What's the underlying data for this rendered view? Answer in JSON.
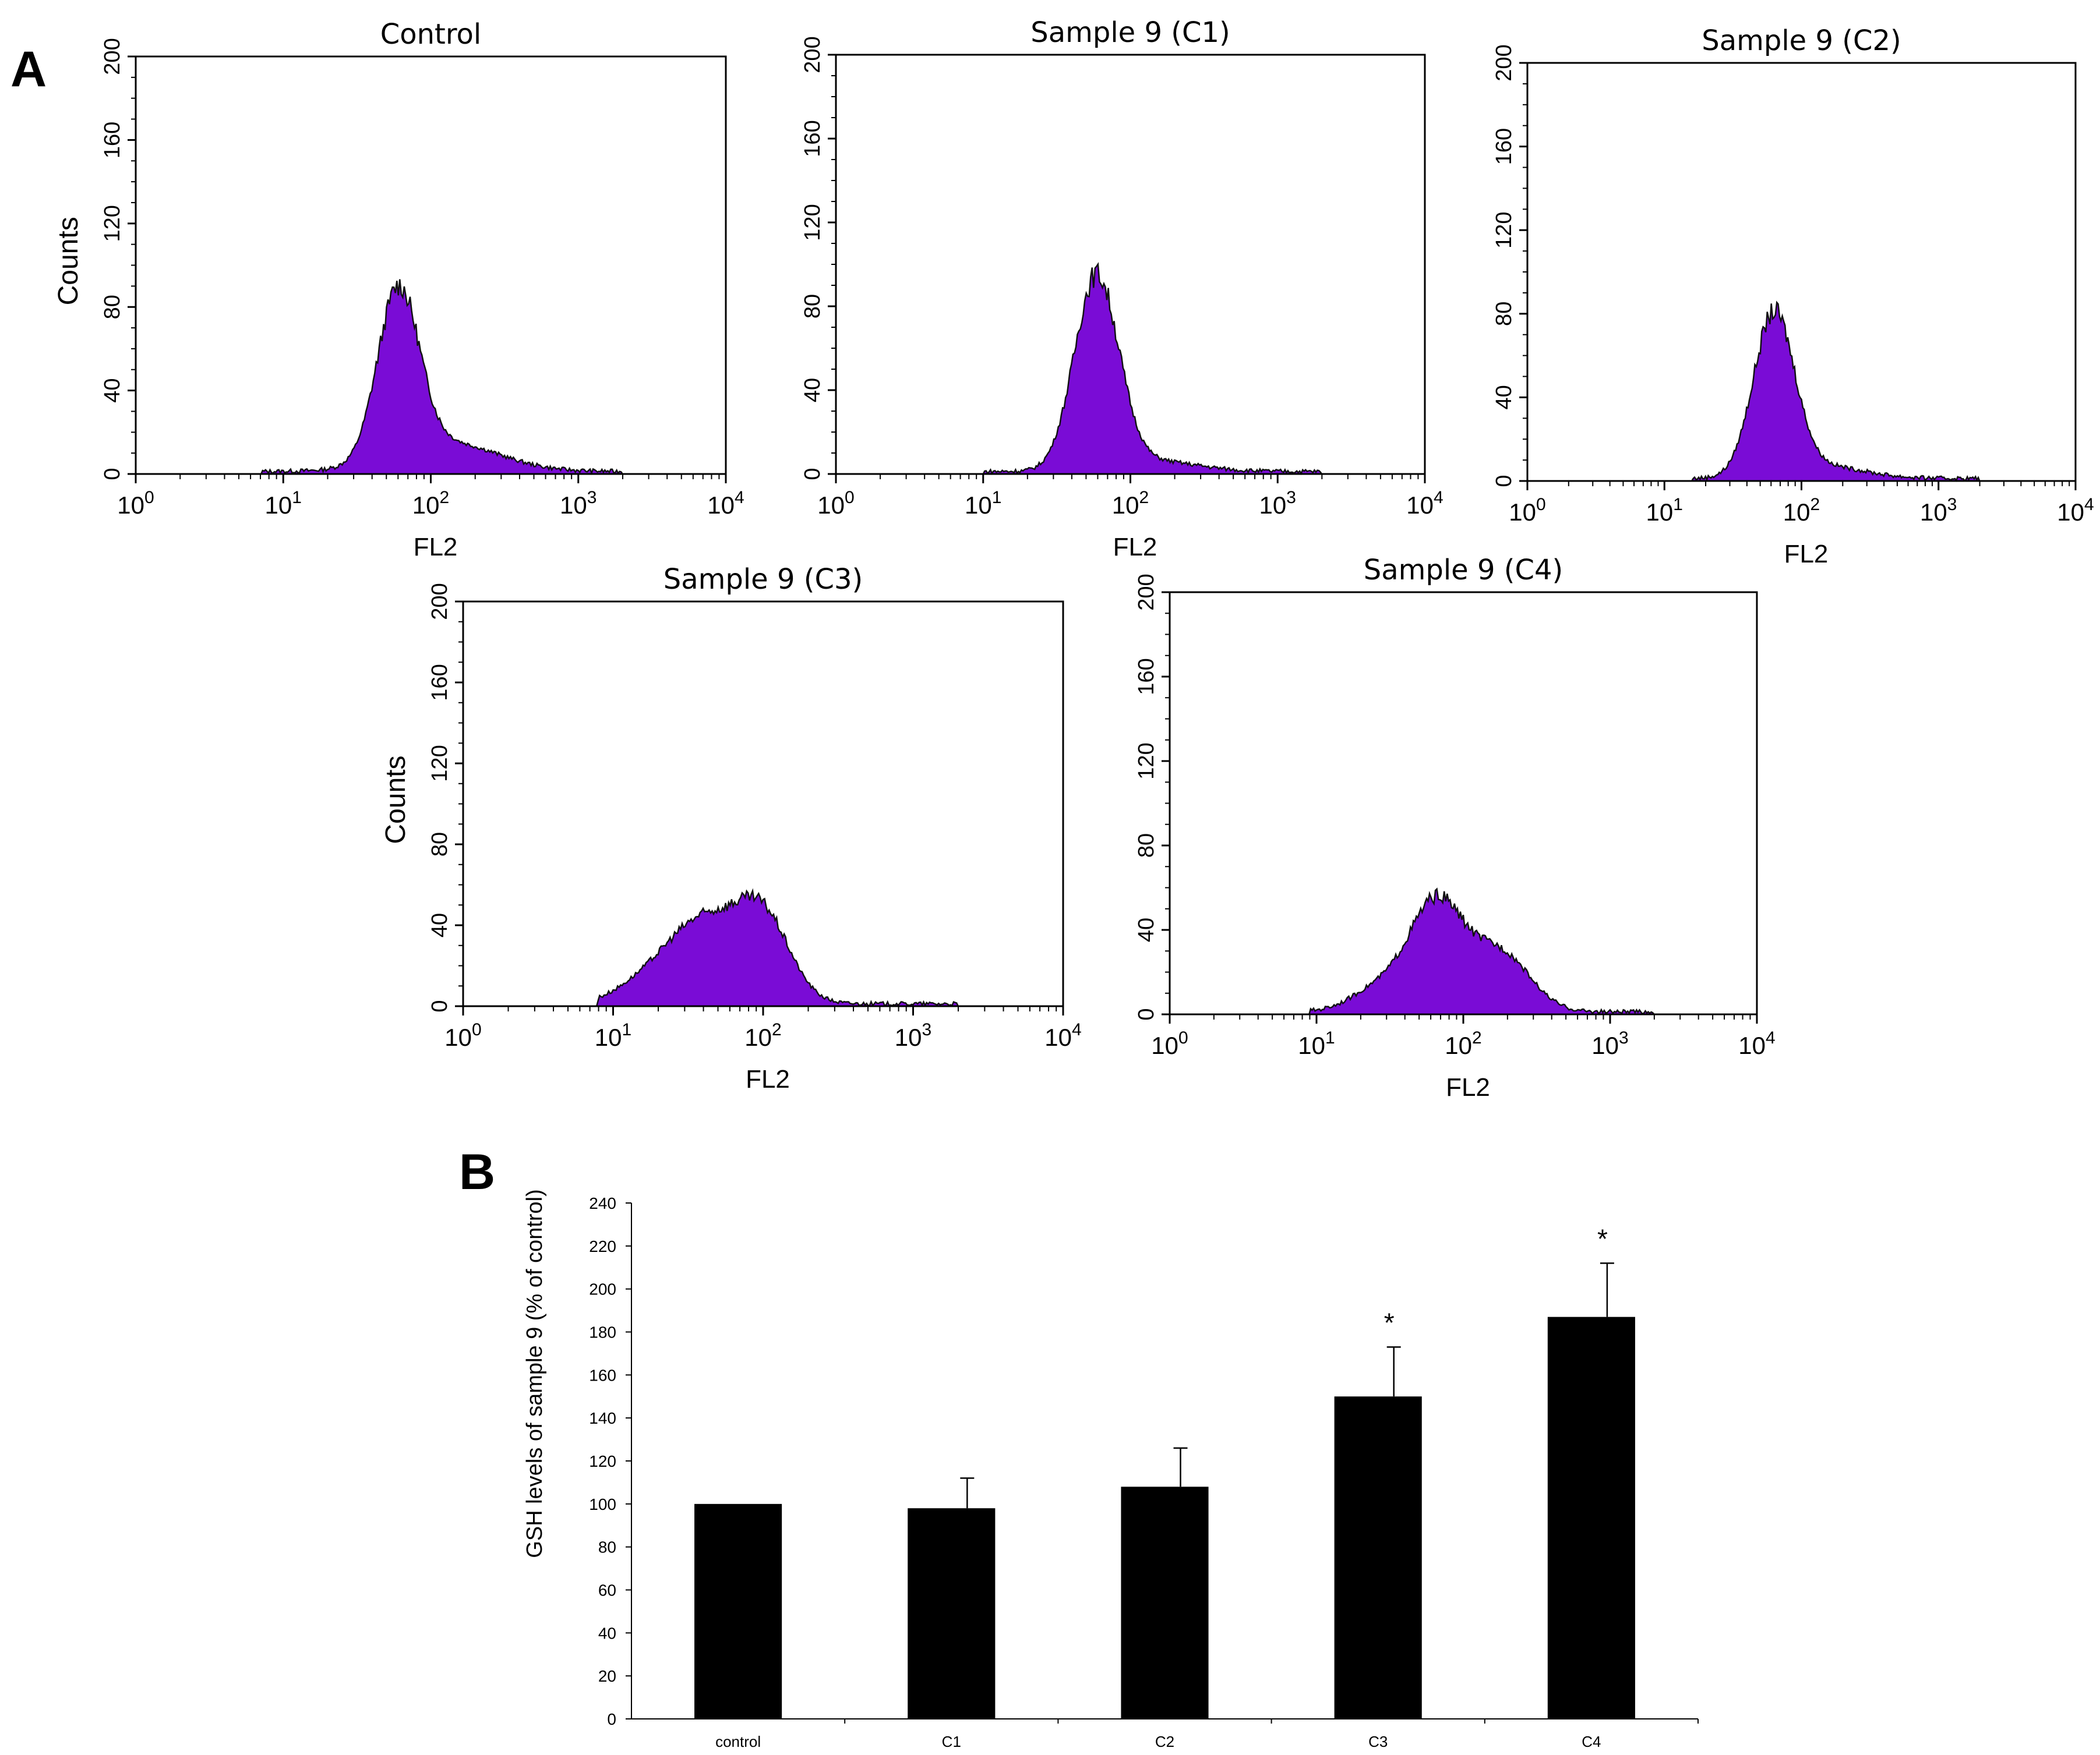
{
  "panels": {
    "a_label": "A",
    "b_label": "B"
  },
  "colors": {
    "histogram_fill": "#7a0cd6",
    "histogram_line": "#111111",
    "bar": "#000000",
    "axis": "#000000"
  },
  "histograms": {
    "common": {
      "y_ticks": [
        "0",
        "40",
        "80",
        "120",
        "160",
        "200"
      ],
      "y_tick_values": [
        0,
        40,
        80,
        120,
        160,
        200
      ],
      "x_ticks": [
        {
          "base": "10",
          "exp": "0"
        },
        {
          "base": "10",
          "exp": "1"
        },
        {
          "base": "10",
          "exp": "2"
        },
        {
          "base": "10",
          "exp": "3"
        },
        {
          "base": "10",
          "exp": "4"
        }
      ],
      "xlabel": "FL2",
      "ylabel": "Counts",
      "xlim_log10": [
        0,
        4
      ],
      "ylim": [
        0,
        200
      ]
    },
    "panels": [
      {
        "title": "Control",
        "peaks": [
          {
            "mu": 1.78,
            "sigma": 0.14,
            "height": 80
          },
          {
            "mu": 2.1,
            "sigma": 0.35,
            "height": 14
          }
        ],
        "onset": 0.85
      },
      {
        "title": "Sample 9 (C1)",
        "peaks": [
          {
            "mu": 1.77,
            "sigma": 0.15,
            "height": 92
          },
          {
            "mu": 2.15,
            "sigma": 0.3,
            "height": 5
          }
        ],
        "onset": 1.0
      },
      {
        "title": "Sample 9 (C2)",
        "peaks": [
          {
            "mu": 1.8,
            "sigma": 0.15,
            "height": 77
          },
          {
            "mu": 2.15,
            "sigma": 0.3,
            "height": 6
          }
        ],
        "onset": 1.2
      },
      {
        "title": "Sample 9 (C3)",
        "peaks": [
          {
            "mu": 1.6,
            "sigma": 0.24,
            "height": 40
          },
          {
            "mu": 2.0,
            "sigma": 0.18,
            "height": 40
          },
          {
            "mu": 1.2,
            "sigma": 0.2,
            "height": 8
          }
        ],
        "onset": 0.9
      },
      {
        "title": "Sample 9 (C4)",
        "peaks": [
          {
            "mu": 1.82,
            "sigma": 0.18,
            "height": 50
          },
          {
            "mu": 2.25,
            "sigma": 0.2,
            "height": 28
          },
          {
            "mu": 1.45,
            "sigma": 0.2,
            "height": 12
          }
        ],
        "onset": 0.95
      }
    ]
  },
  "chart_data": {
    "type": "bar",
    "title": "",
    "xlabel": "",
    "ylabel": "GSH levels of sample 9 (% of control)",
    "categories": [
      "control",
      "C1",
      "C2",
      "C3",
      "C4"
    ],
    "values": [
      100,
      98,
      108,
      150,
      187
    ],
    "errors": [
      0,
      14,
      18,
      23,
      25
    ],
    "significance": [
      "",
      "",
      "",
      "*",
      "*"
    ],
    "ylim": [
      0,
      240
    ],
    "y_ticks": [
      0,
      20,
      40,
      60,
      80,
      100,
      120,
      140,
      160,
      180,
      200,
      220,
      240
    ],
    "grid": false
  }
}
